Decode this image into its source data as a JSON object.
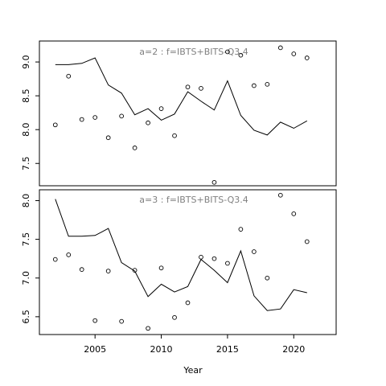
{
  "chart_data": [
    {
      "type": "scatter",
      "title": "a=2  :  f=IBTS+BITS-Q3.4",
      "xlabel": "",
      "ylabel": "",
      "xlim": [
        2000.8,
        2023.2
      ],
      "ylim": [
        7.17,
        9.31
      ],
      "yticks": [
        7.5,
        8.0,
        8.5,
        9.0
      ],
      "ytick_labels": [
        "7.5",
        "8.0",
        "8.5",
        "9.0"
      ],
      "grid": false,
      "series": [
        {
          "kind": "line",
          "x": [
            2002,
            2003,
            2004,
            2005,
            2006,
            2007,
            2008,
            2009,
            2010,
            2011,
            2012,
            2013,
            2014,
            2015,
            2016,
            2017,
            2018,
            2019,
            2020,
            2021
          ],
          "values": [
            8.96,
            8.96,
            8.98,
            9.06,
            8.66,
            8.54,
            8.22,
            8.31,
            8.14,
            8.23,
            8.56,
            8.42,
            8.29,
            8.72,
            8.21,
            7.99,
            7.92,
            8.11,
            8.02,
            8.13
          ]
        },
        {
          "kind": "points",
          "x": [
            2002,
            2003,
            2004,
            2005,
            2006,
            2007,
            2008,
            2009,
            2010,
            2011,
            2012,
            2013,
            2014,
            2015,
            2016,
            2017,
            2018,
            2019,
            2020,
            2021
          ],
          "values": [
            8.07,
            8.79,
            8.15,
            8.18,
            7.88,
            8.2,
            7.73,
            8.1,
            8.31,
            7.91,
            8.63,
            8.61,
            7.22,
            9.15,
            9.1,
            8.65,
            8.67,
            9.21,
            9.12,
            9.06
          ]
        }
      ]
    },
    {
      "type": "scatter",
      "title": "a=3  :  f=IBTS+BITS-Q3.4",
      "xlabel": "Year",
      "ylabel": "",
      "xlim": [
        2000.8,
        2023.2
      ],
      "ylim": [
        6.27,
        8.14
      ],
      "xticks": [
        2005,
        2010,
        2015,
        2020
      ],
      "xtick_labels": [
        "2005",
        "2010",
        "2015",
        "2020"
      ],
      "yticks": [
        6.5,
        7.0,
        7.5,
        8.0
      ],
      "ytick_labels": [
        "6.5",
        "7.0",
        "7.5",
        "8.0"
      ],
      "grid": false,
      "series": [
        {
          "kind": "line",
          "x": [
            2002,
            2003,
            2004,
            2005,
            2006,
            2007,
            2008,
            2009,
            2010,
            2011,
            2012,
            2013,
            2014,
            2015,
            2016,
            2017,
            2018,
            2019,
            2020,
            2021
          ],
          "values": [
            8.02,
            7.54,
            7.54,
            7.55,
            7.64,
            7.2,
            7.09,
            6.76,
            6.92,
            6.82,
            6.89,
            7.24,
            7.1,
            6.94,
            7.35,
            6.77,
            6.58,
            6.6,
            6.85,
            6.81
          ]
        },
        {
          "kind": "points",
          "x": [
            2002,
            2003,
            2004,
            2005,
            2006,
            2007,
            2008,
            2009,
            2010,
            2011,
            2012,
            2013,
            2014,
            2015,
            2016,
            2017,
            2018,
            2019,
            2020,
            2021
          ],
          "values": [
            7.24,
            7.3,
            7.11,
            6.45,
            7.09,
            6.44,
            7.1,
            6.35,
            7.13,
            6.49,
            6.68,
            7.27,
            7.25,
            7.19,
            7.63,
            7.34,
            7.0,
            8.07,
            7.83,
            7.47
          ]
        }
      ]
    }
  ]
}
